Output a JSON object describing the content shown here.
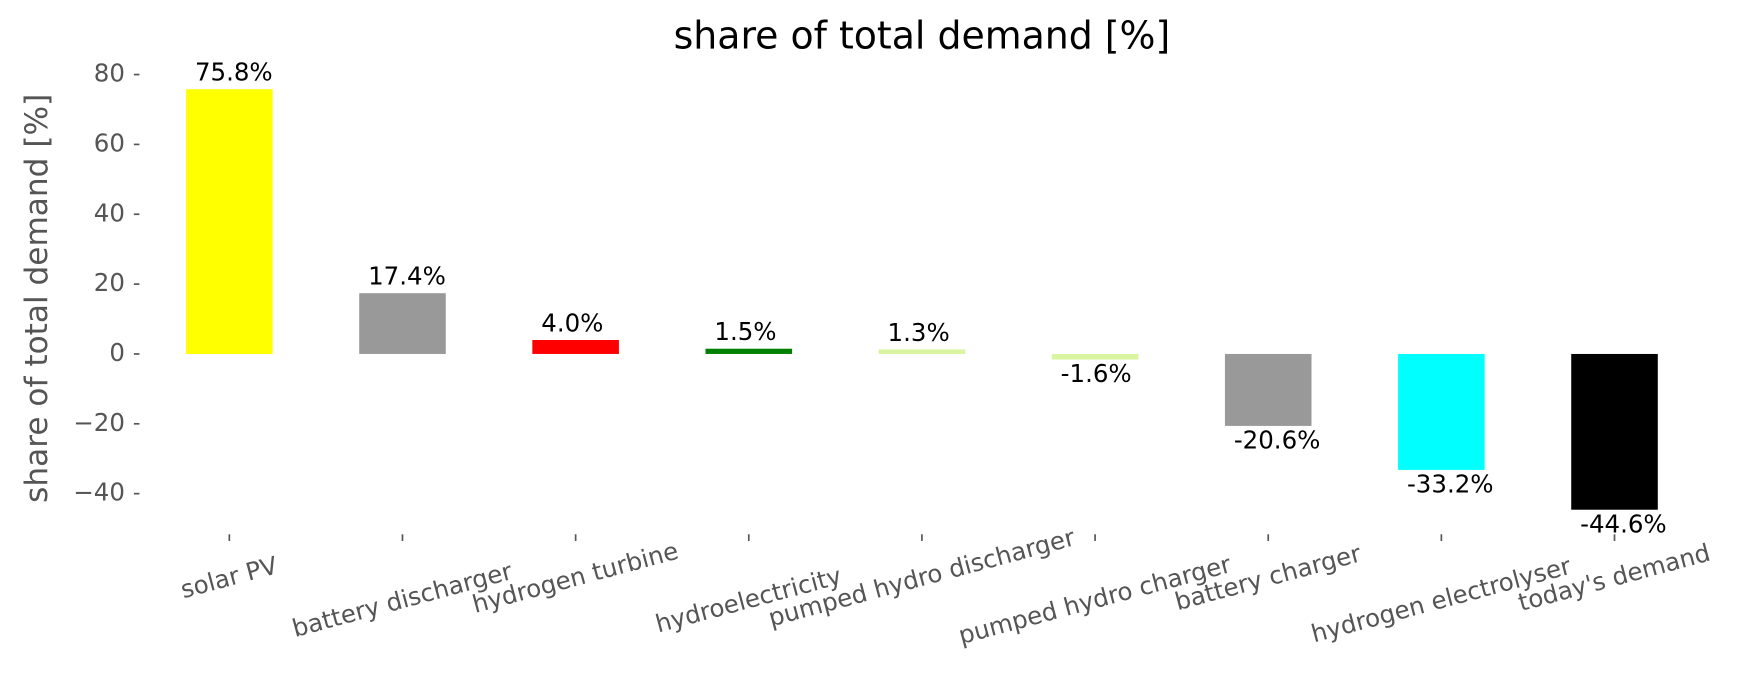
{
  "chart_data": {
    "type": "bar",
    "title": "share of total demand [%]",
    "y_label": "share of total demand [%]",
    "categories": [
      "solar PV",
      "battery discharger",
      "hydrogen turbine",
      "hydroelectricity",
      "pumped hydro discharger",
      "pumped hydro charger",
      "battery charger",
      "hydrogen electrolyser",
      "today's demand"
    ],
    "values": [
      75.8,
      17.4,
      4.0,
      1.5,
      1.3,
      -1.6,
      -20.6,
      -33.2,
      -44.6
    ],
    "value_labels": [
      "75.8%",
      "17.4%",
      "4.0%",
      "1.5%",
      "1.3%",
      "-1.6%",
      "-20.6%",
      "-33.2%",
      "-44.6%"
    ],
    "colors": [
      "#ffff00",
      "#999999",
      "#ff0000",
      "#008000",
      "#d9f5a0",
      "#d9f5a0",
      "#999999",
      "#00ffff",
      "#000000"
    ],
    "ylim": [
      -52,
      82
    ],
    "yticks": [
      {
        "value": -40,
        "label": "−40"
      },
      {
        "value": -20,
        "label": "−20"
      },
      0,
      20,
      40,
      60,
      80
    ],
    "grid": false
  }
}
